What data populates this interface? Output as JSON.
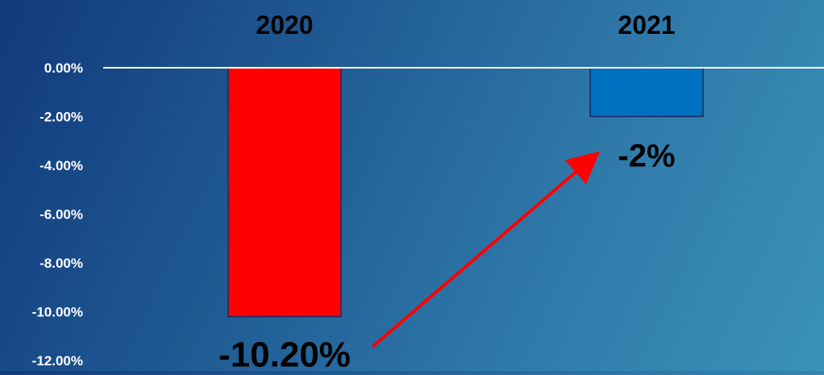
{
  "chart_data": {
    "type": "bar",
    "categories": [
      "2020",
      "2021"
    ],
    "values": [
      -10.2,
      -2.0
    ],
    "data_labels": [
      "-10.20%",
      "-2%"
    ],
    "ylim": [
      -12,
      0
    ],
    "yticks": [
      0,
      -2,
      -4,
      -6,
      -8,
      -10,
      -12
    ],
    "ytick_labels": [
      "0.00%",
      "-2.00%",
      "-4.00%",
      "-6.00%",
      "-8.00%",
      "-10.00%",
      "-12.00%"
    ],
    "x_axis_position": "top",
    "grid": false,
    "legend": "none",
    "colors": {
      "bar_2020": "#ff0000",
      "bar_2021": "#0070c0",
      "arrow": "#ff0000",
      "axis_line": "#ffffff",
      "tick_labels": "#ffffff",
      "category_labels": "#000000",
      "data_labels": "#000000"
    },
    "annotations": [
      {
        "type": "arrow",
        "from": "2020",
        "to": "2021"
      }
    ]
  }
}
